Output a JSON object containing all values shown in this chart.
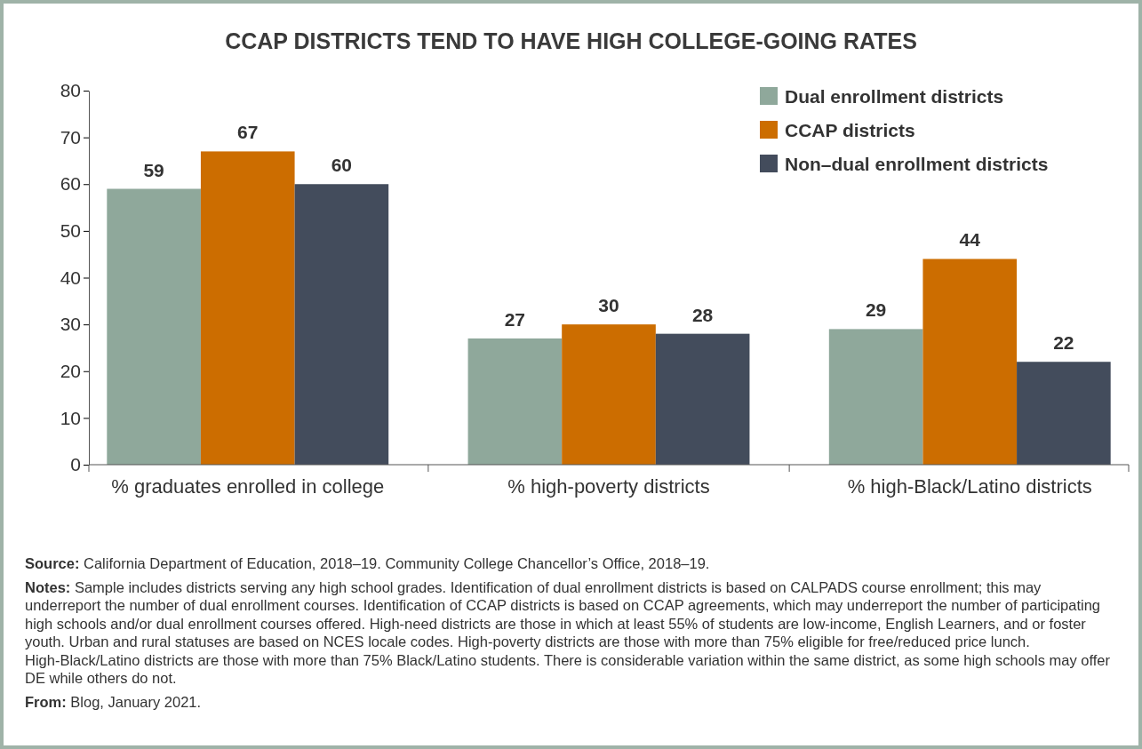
{
  "chart_data": {
    "type": "bar",
    "title": "CCAP DISTRICTS TEND TO HAVE HIGH COLLEGE-GOING RATES",
    "categories": [
      "% graduates enrolled in college",
      "% high-poverty districts",
      "% high-Black/Latino districts"
    ],
    "series": [
      {
        "name": "Dual enrollment districts",
        "color": "#8fa89b",
        "values": [
          59,
          27,
          29
        ]
      },
      {
        "name": "CCAP districts",
        "color": "#cc6d00",
        "values": [
          67,
          30,
          44
        ]
      },
      {
        "name": "Non–dual enrollment districts",
        "color": "#434c5c",
        "values": [
          60,
          28,
          22
        ]
      }
    ],
    "ylim": [
      0,
      80
    ],
    "yticks": [
      0,
      10,
      20,
      30,
      40,
      50,
      60,
      70,
      80
    ],
    "grid": false,
    "legend": "top right",
    "data_labels": true,
    "annotations": [
      "Source: California Department of Education, 2018–19. Community College Chancellor’s Office, 2018–19.",
      "Notes: Sample includes districts serving any high school grades. Identification of dual enrollment districts is based on CALPADS course enrollment; this may underreport the number of dual enrollment courses. Identification of CCAP districts is based on CCAP agreements, which may underreport the number of participating high schools and/or dual enrollment courses offered. High-need districts are those in which at least 55% of students are low-income, English Learners, and or foster youth. Urban and rural statuses are based on NCES locale codes. High-poverty districts are those with more than 75% eligible for free/reduced price lunch. High-Black/Latino districts are those with more than 75% Black/Latino students. There is considerable variation within the same district, as some high schools may offer DE while others do not.",
      "From: Blog, January 2021."
    ]
  }
}
